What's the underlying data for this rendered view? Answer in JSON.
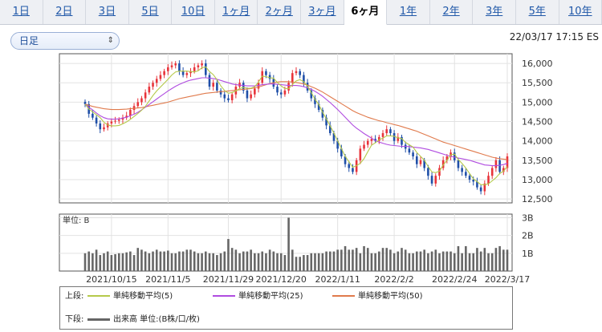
{
  "tabs": [
    {
      "label": "1日",
      "active": false
    },
    {
      "label": "2日",
      "active": false
    },
    {
      "label": "3日",
      "active": false
    },
    {
      "label": "5日",
      "active": false
    },
    {
      "label": "10日",
      "active": false
    },
    {
      "label": "1ヶ月",
      "active": false
    },
    {
      "label": "2ヶ月",
      "active": false
    },
    {
      "label": "3ヶ月",
      "active": false
    },
    {
      "label": "6ヶ月",
      "active": true
    },
    {
      "label": "1年",
      "active": false
    },
    {
      "label": "2年",
      "active": false
    },
    {
      "label": "3年",
      "active": false
    },
    {
      "label": "5年",
      "active": false
    },
    {
      "label": "10年",
      "active": false
    }
  ],
  "selector": {
    "value": "日足",
    "icon": "updown-chevron-icon"
  },
  "timestamp": "22/03/17 17:15 ES",
  "legend": {
    "upper_label": "上段:",
    "lower_label": "下段:",
    "items": [
      {
        "label": "単純移動平均(5)",
        "color": "#b5c94a"
      },
      {
        "label": "単純移動平均(25)",
        "color": "#b04ce0"
      },
      {
        "label": "単純移動平均(50)",
        "color": "#e07a4c"
      }
    ],
    "volume_label": "出来高 単位:(B株/口/枚)",
    "volume_color": "#666666"
  },
  "chart_data": [
    {
      "type": "candlestick",
      "y_ticks": [
        "16,000",
        "15,500",
        "15,000",
        "14,500",
        "14,000",
        "13,500",
        "13,000",
        "12,500"
      ],
      "y_tick_values": [
        16000,
        15500,
        15000,
        14500,
        14000,
        13500,
        13000,
        12500
      ],
      "ylim": [
        12400,
        16250
      ],
      "x_tick_labels": [
        "2021/10/15",
        "2021/11/5",
        "2021/11/29",
        "2021/12/20",
        "2022/1/11",
        "2022/2/2",
        "2022/2/24",
        "2022/3/17"
      ],
      "x_tick_index": [
        7,
        22,
        38,
        52,
        67,
        82,
        98,
        112
      ],
      "n_points": 113,
      "up_color": "#e8333a",
      "down_color": "#1f4fa8",
      "close": [
        14950,
        14700,
        14600,
        14450,
        14300,
        14350,
        14450,
        14500,
        14520,
        14550,
        14600,
        14650,
        14800,
        14900,
        15000,
        15100,
        15250,
        15400,
        15500,
        15600,
        15700,
        15800,
        15900,
        15950,
        16000,
        15800,
        15700,
        15750,
        15800,
        15900,
        15950,
        16000,
        15700,
        15400,
        15500,
        15300,
        15200,
        15100,
        15050,
        15200,
        15400,
        15500,
        15300,
        15100,
        15200,
        15350,
        15500,
        15800,
        15700,
        15600,
        15400,
        15250,
        15200,
        15300,
        15500,
        15750,
        15800,
        15700,
        15500,
        15300,
        15100,
        14950,
        14800,
        14600,
        14400,
        14200,
        14000,
        13800,
        13600,
        13400,
        13300,
        13200,
        13500,
        13800,
        13900,
        14000,
        14050,
        14000,
        14100,
        14200,
        14300,
        14200,
        14000,
        14100,
        13900,
        13800,
        13700,
        13600,
        13400,
        13500,
        13300,
        13100,
        12900,
        13100,
        13300,
        13500,
        13600,
        13700,
        13500,
        13300,
        13200,
        13100,
        13000,
        12950,
        12800,
        12700,
        12900,
        13100,
        13300,
        13500,
        13200,
        13300,
        13600
      ],
      "ma5": [
        14950,
        14825,
        14750,
        14675,
        14600,
        14480,
        14410,
        14390,
        14390,
        14400,
        14440,
        14490,
        14556,
        14632,
        14710,
        14790,
        14890,
        15030,
        15170,
        15290,
        15390,
        15490,
        15590,
        15700,
        15780,
        15800,
        15800,
        15800,
        15790,
        15780,
        15810,
        15890,
        15910,
        15790,
        15710,
        15580,
        15420,
        15300,
        15230,
        15250,
        15290,
        15350,
        15380,
        15360,
        15360,
        15400,
        15520,
        15670,
        15660,
        15630,
        15620,
        15510,
        15420,
        15350,
        15350,
        15450,
        15550,
        15580,
        15530,
        15410,
        15250,
        15070,
        14940,
        14740,
        14570,
        14390,
        14200,
        14000,
        13800,
        13600,
        13460,
        13320,
        13360,
        13420,
        13540,
        13720,
        13890,
        13950,
        14030,
        14070,
        14130,
        14130,
        14120,
        14080,
        14060,
        13960,
        13900,
        13840,
        13700,
        13600,
        13500,
        13340,
        13200,
        13180,
        13220,
        13380,
        13500,
        13640,
        13660,
        13520,
        13420,
        13300,
        13160,
        13020,
        12950,
        12870,
        12870,
        12890,
        12970,
        13050,
        13160,
        13220,
        13340
      ],
      "ma25": [
        14950,
        14870,
        14800,
        14720,
        14650,
        14600,
        14570,
        14560,
        14560,
        14570,
        14590,
        14610,
        14650,
        14690,
        14740,
        14800,
        14870,
        14940,
        15010,
        15080,
        15150,
        15220,
        15290,
        15350,
        15410,
        15460,
        15500,
        15540,
        15570,
        15590,
        15610,
        15630,
        15630,
        15620,
        15610,
        15590,
        15560,
        15530,
        15500,
        15470,
        15450,
        15440,
        15430,
        15420,
        15420,
        15420,
        15430,
        15450,
        15460,
        15470,
        15470,
        15460,
        15450,
        15440,
        15430,
        15430,
        15430,
        15420,
        15400,
        15370,
        15330,
        15280,
        15220,
        15150,
        15070,
        14990,
        14900,
        14810,
        14710,
        14610,
        14510,
        14410,
        14330,
        14260,
        14190,
        14130,
        14070,
        14010,
        13970,
        13940,
        13910,
        13890,
        13880,
        13870,
        13860,
        13860,
        13850,
        13840,
        13830,
        13820,
        13800,
        13780,
        13750,
        13720,
        13690,
        13660,
        13630,
        13600,
        13580,
        13560,
        13540,
        13520,
        13500,
        13470,
        13440,
        13410,
        13380,
        13370,
        13360,
        13360,
        13370,
        13390,
        13420
      ],
      "ma50": [
        14950,
        14920,
        14890,
        14870,
        14850,
        14830,
        14820,
        14810,
        14810,
        14810,
        14815,
        14820,
        14830,
        14840,
        14850,
        14860,
        14880,
        14900,
        14920,
        14940,
        14960,
        14980,
        15000,
        15030,
        15060,
        15090,
        15110,
        15130,
        15150,
        15170,
        15190,
        15210,
        15230,
        15240,
        15250,
        15260,
        15270,
        15280,
        15290,
        15300,
        15310,
        15320,
        15330,
        15340,
        15350,
        15370,
        15390,
        15420,
        15450,
        15480,
        15500,
        15520,
        15530,
        15530,
        15530,
        15520,
        15510,
        15490,
        15470,
        15440,
        15400,
        15360,
        15310,
        15260,
        15200,
        15140,
        15080,
        15020,
        14960,
        14900,
        14840,
        14780,
        14730,
        14690,
        14650,
        14610,
        14580,
        14550,
        14520,
        14500,
        14470,
        14450,
        14420,
        14400,
        14370,
        14340,
        14310,
        14280,
        14250,
        14210,
        14170,
        14130,
        14090,
        14050,
        14010,
        13970,
        13940,
        13910,
        13880,
        13850,
        13820,
        13790,
        13760,
        13730,
        13700,
        13670,
        13640,
        13610,
        13580,
        13560,
        13540,
        13530,
        13520
      ]
    },
    {
      "type": "bar",
      "title": "単位: B",
      "y_ticks": [
        "3B",
        "2B",
        "1B"
      ],
      "y_tick_values": [
        3,
        2,
        1
      ],
      "ylim": [
        0,
        3.2
      ],
      "values": [
        1.0,
        1.1,
        1.0,
        1.2,
        0.9,
        1.0,
        1.1,
        0.9,
        0.95,
        1.0,
        1.0,
        1.05,
        1.1,
        0.9,
        1.3,
        1.2,
        1.1,
        1.0,
        1.1,
        1.2,
        1.1,
        1.1,
        1.15,
        1.0,
        1.0,
        1.1,
        1.1,
        1.2,
        1.2,
        1.1,
        1.0,
        1.0,
        1.1,
        1.0,
        1.0,
        0.9,
        1.0,
        1.1,
        1.8,
        1.3,
        1.2,
        1.0,
        1.1,
        1.1,
        1.2,
        1.0,
        1.0,
        1.1,
        1.0,
        1.2,
        1.1,
        1.0,
        1.0,
        0.9,
        3.0,
        1.2,
        0.8,
        0.8,
        0.9,
        0.9,
        1.0,
        1.0,
        1.0,
        1.0,
        1.1,
        1.1,
        1.1,
        1.2,
        1.2,
        1.4,
        1.2,
        1.2,
        1.3,
        1.0,
        1.4,
        1.3,
        1.0,
        1.0,
        1.1,
        1.3,
        1.3,
        1.2,
        1.0,
        1.1,
        1.3,
        1.2,
        1.0,
        1.0,
        1.1,
        1.1,
        1.2,
        1.0,
        1.1,
        1.2,
        1.0,
        1.1,
        1.1,
        1.1,
        1.0,
        1.4,
        1.0,
        1.4,
        1.0,
        1.0,
        1.3,
        1.1,
        1.3,
        1.0,
        1.0,
        1.3,
        1.4,
        1.2,
        1.2
      ]
    }
  ]
}
